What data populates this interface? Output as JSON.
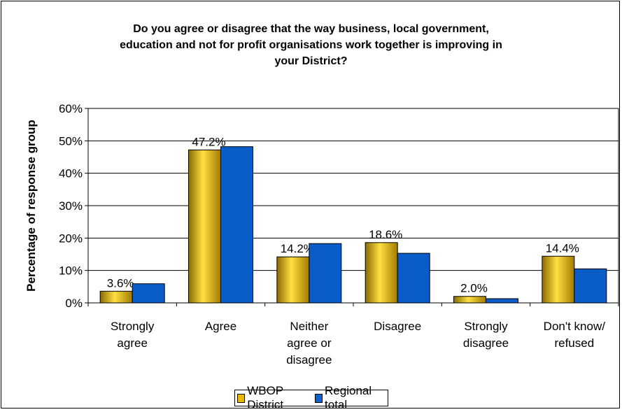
{
  "chart_data": {
    "type": "bar",
    "title_lines": [
      "Do you agree or disagree that the way business, local government,",
      "education and not for profit organisations work together is improving in",
      "your District?"
    ],
    "ylabel": "Percentage of response group",
    "ylim": [
      0,
      60
    ],
    "yticks": [
      "0%",
      "10%",
      "20%",
      "30%",
      "40%",
      "50%",
      "60%"
    ],
    "grid": true,
    "legend_position": "bottom",
    "categories": [
      [
        "Strongly",
        "agree"
      ],
      [
        "Agree"
      ],
      [
        "Neither",
        "agree or",
        "disagree"
      ],
      [
        "Disagree"
      ],
      [
        "Strongly",
        "disagree"
      ],
      [
        "Don't know/",
        "refused"
      ]
    ],
    "series": [
      {
        "name": "WBOP District",
        "color": "#E8B800",
        "values": [
          3.6,
          47.2,
          14.2,
          18.6,
          2.0,
          14.4
        ],
        "data_labels": [
          "3.6%",
          "47.2%",
          "14.2%",
          "18.6%",
          "2.0%",
          "14.4%"
        ]
      },
      {
        "name": "Regional total",
        "color": "#0A64D2",
        "values": [
          5.9,
          48.2,
          18.3,
          15.3,
          1.3,
          10.5
        ]
      }
    ]
  }
}
